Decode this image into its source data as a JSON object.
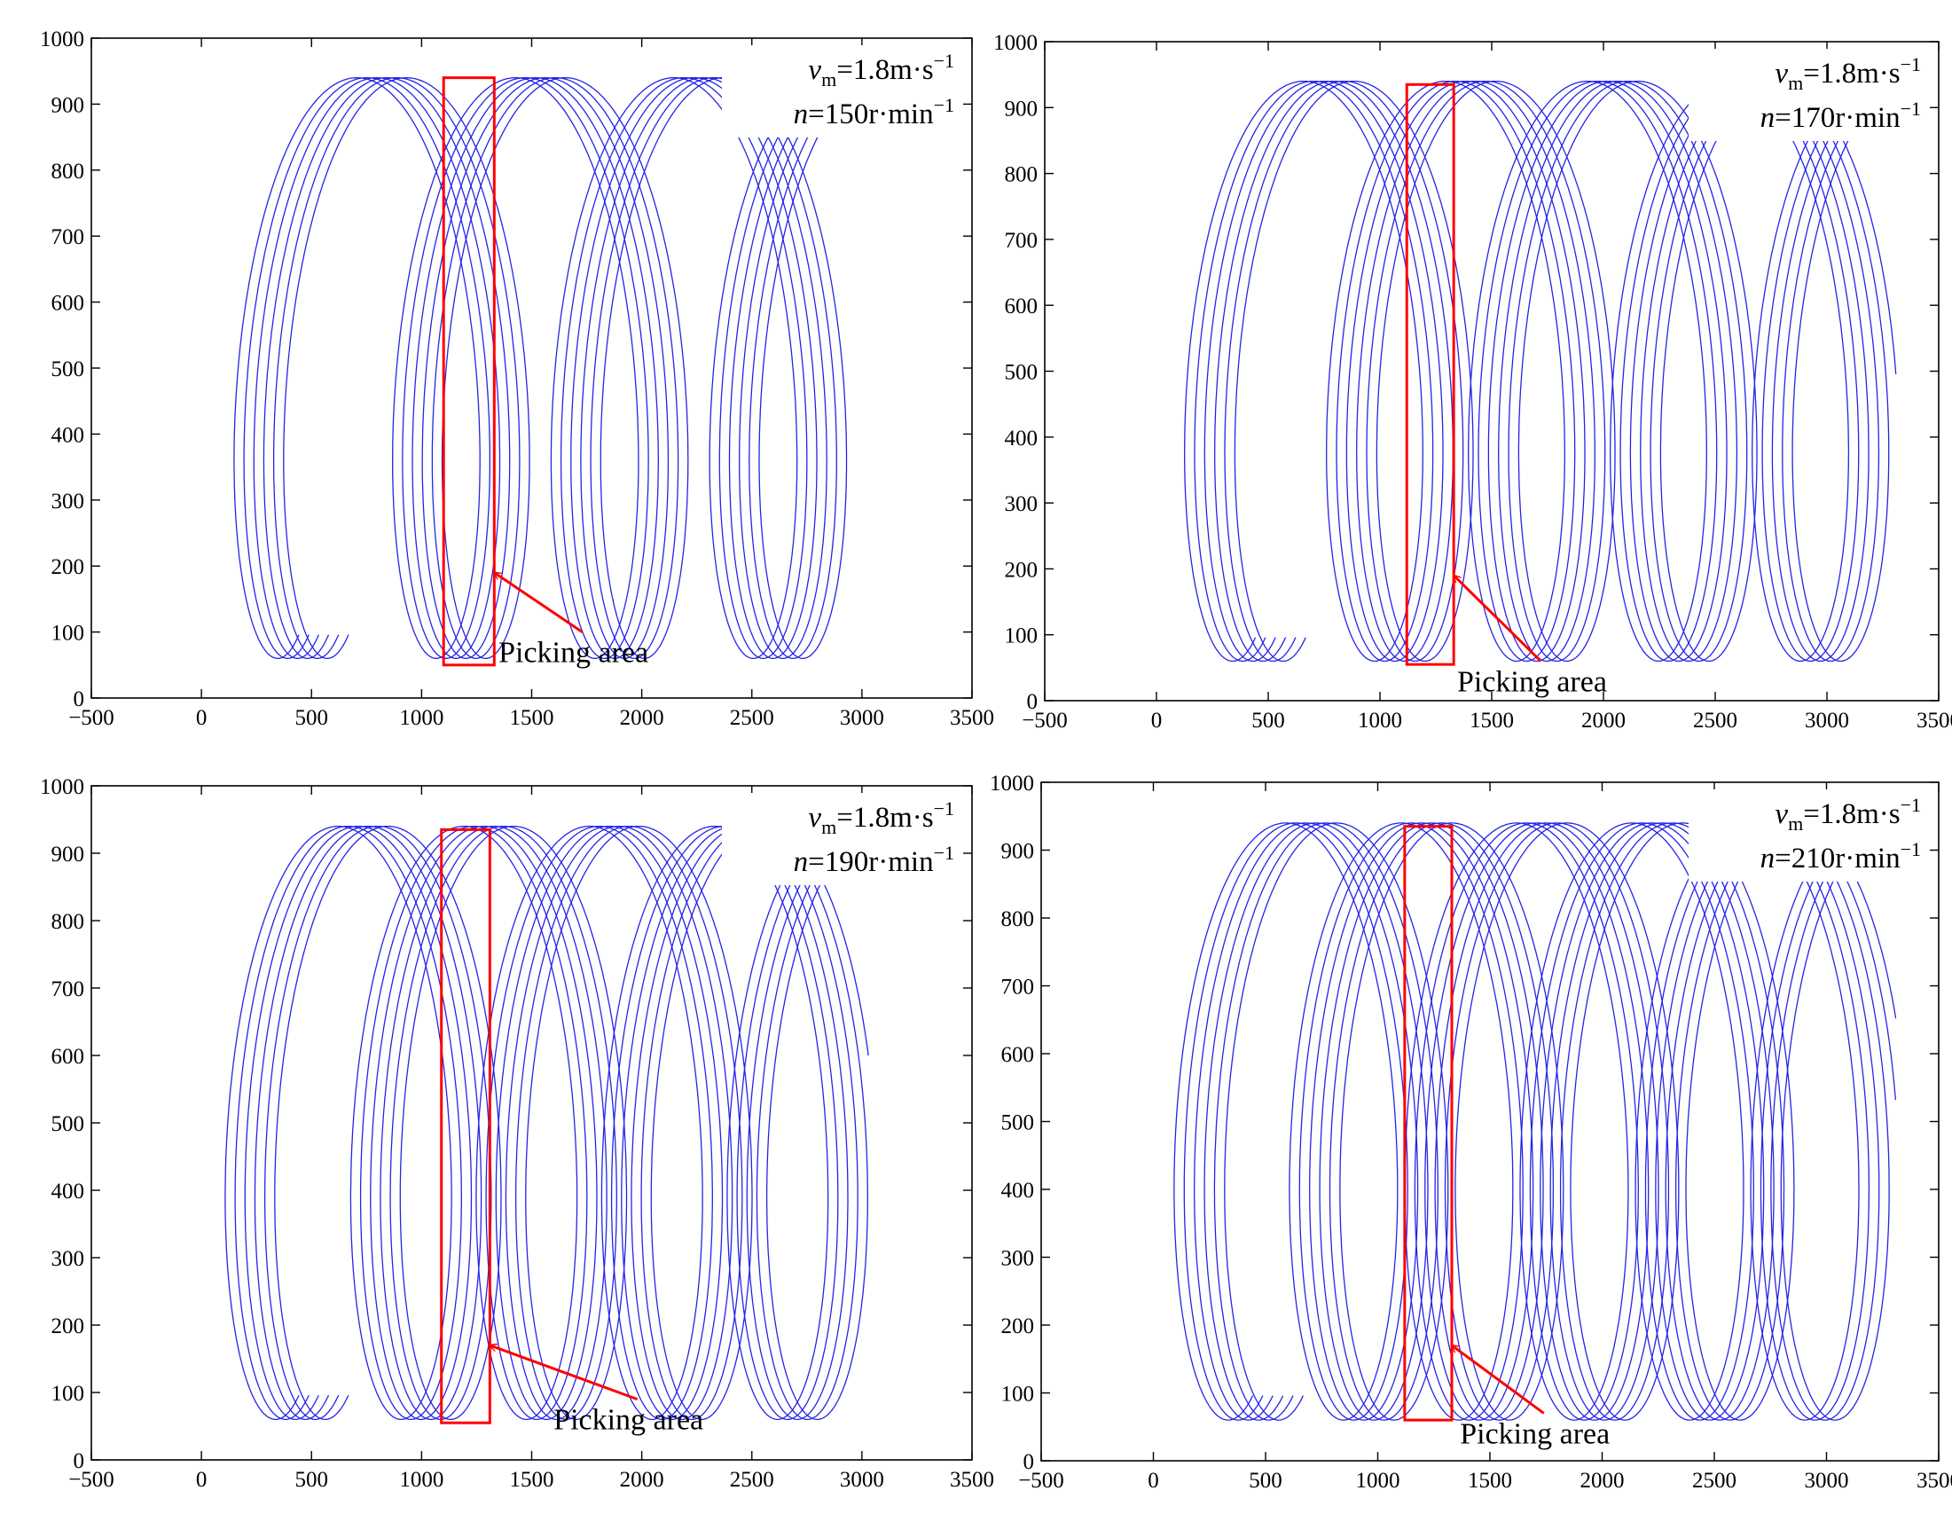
{
  "figure": {
    "panel_count": 4,
    "trajectory_color": "#2424e6",
    "box_color": "#ff0000",
    "background": "#ffffff"
  },
  "chart_data": [
    {
      "type": "line",
      "title": "",
      "xlabel": "",
      "ylabel": "",
      "xlim": [
        -500,
        3500
      ],
      "ylim": [
        0,
        1000
      ],
      "xticks": [
        -500,
        0,
        500,
        1000,
        1500,
        2000,
        2500,
        3000,
        3500
      ],
      "yticks": [
        0,
        100,
        200,
        300,
        400,
        500,
        600,
        700,
        800,
        900,
        1000
      ],
      "grid": false,
      "params": {
        "v_symbol": "v",
        "v_sub": "m",
        "v_value": "=1.8m·s",
        "v_exp": "−1",
        "n_symbol": "n",
        "n_value": "=150r·min",
        "n_exp": "−1"
      },
      "speed_r_min": 150,
      "series_description": "6 trochoidal tip trajectories, y range 60–940",
      "trajectory": {
        "num_tracks": 6,
        "track_offset": 45,
        "start_x": 440,
        "start_y": 500,
        "center_x": 300,
        "center_y": 500,
        "radius_x": 360,
        "radius_y": 440,
        "advance_per_rev": 720,
        "end_x": 3020
      },
      "box": {
        "x0": 1100,
        "x1": 1330,
        "y0": 50,
        "y1": 940
      },
      "annotation": {
        "text": "Picking area",
        "arrow_from": [
          1730,
          100
        ],
        "arrow_to": [
          1330,
          190
        ]
      }
    },
    {
      "type": "line",
      "title": "",
      "xlabel": "",
      "ylabel": "",
      "xlim": [
        -500,
        3500
      ],
      "ylim": [
        0,
        1000
      ],
      "xticks": [
        -500,
        0,
        500,
        1000,
        1500,
        2000,
        2500,
        3000,
        3500
      ],
      "yticks": [
        0,
        100,
        200,
        300,
        400,
        500,
        600,
        700,
        800,
        900,
        1000
      ],
      "grid": false,
      "params": {
        "v_symbol": "v",
        "v_sub": "m",
        "v_value": "=1.8m·s",
        "v_exp": "−1",
        "n_symbol": "n",
        "n_value": "=170r·min",
        "n_exp": "−1"
      },
      "speed_r_min": 170,
      "series_description": "6 trochoidal tip trajectories, y range 60–940",
      "trajectory": {
        "num_tracks": 6,
        "track_offset": 45,
        "start_x": 440,
        "start_y": 500,
        "center_x": 300,
        "center_y": 500,
        "radius_x": 360,
        "radius_y": 440,
        "advance_per_rev": 635,
        "end_x": 3300
      },
      "box": {
        "x0": 1120,
        "x1": 1330,
        "y0": 55,
        "y1": 935
      },
      "annotation": {
        "text": "Picking area",
        "arrow_from": [
          1720,
          60
        ],
        "arrow_to": [
          1330,
          190
        ]
      }
    },
    {
      "type": "line",
      "title": "",
      "xlabel": "",
      "ylabel": "",
      "xlim": [
        -500,
        3500
      ],
      "ylim": [
        0,
        1000
      ],
      "xticks": [
        -500,
        0,
        500,
        1000,
        1500,
        2000,
        2500,
        3000,
        3500
      ],
      "yticks": [
        0,
        100,
        200,
        300,
        400,
        500,
        600,
        700,
        800,
        900,
        1000
      ],
      "grid": false,
      "params": {
        "v_symbol": "v",
        "v_sub": "m",
        "v_value": "=1.8m·s",
        "v_exp": "−1",
        "n_symbol": "n",
        "n_value": "=190r·min",
        "n_exp": "−1"
      },
      "speed_r_min": 190,
      "series_description": "6 trochoidal tip trajectories, y range 60–940",
      "trajectory": {
        "num_tracks": 6,
        "track_offset": 45,
        "start_x": 440,
        "start_y": 500,
        "center_x": 300,
        "center_y": 500,
        "radius_x": 360,
        "radius_y": 440,
        "advance_per_rev": 570,
        "end_x": 3020
      },
      "box": {
        "x0": 1090,
        "x1": 1310,
        "y0": 55,
        "y1": 935
      },
      "annotation": {
        "text": "Picking area",
        "arrow_from": [
          1980,
          90
        ],
        "arrow_to": [
          1310,
          170
        ]
      }
    },
    {
      "type": "line",
      "title": "",
      "xlabel": "",
      "ylabel": "",
      "xlim": [
        -500,
        3500
      ],
      "ylim": [
        0,
        1000
      ],
      "xticks": [
        -500,
        0,
        500,
        1000,
        1500,
        2000,
        2500,
        3000,
        3500
      ],
      "yticks": [
        0,
        100,
        200,
        300,
        400,
        500,
        600,
        700,
        800,
        900,
        1000
      ],
      "grid": false,
      "params": {
        "v_symbol": "v",
        "v_sub": "m",
        "v_value": "=1.8m·s",
        "v_exp": "−1",
        "n_symbol": "n",
        "n_value": "=210r·min",
        "n_exp": "−1"
      },
      "speed_r_min": 210,
      "series_description": "6 trochoidal tip trajectories, y range 60–940",
      "trajectory": {
        "num_tracks": 6,
        "track_offset": 45,
        "start_x": 440,
        "start_y": 500,
        "center_x": 300,
        "center_y": 500,
        "radius_x": 360,
        "radius_y": 440,
        "advance_per_rev": 514,
        "end_x": 3300
      },
      "box": {
        "x0": 1120,
        "x1": 1330,
        "y0": 60,
        "y1": 935
      },
      "annotation": {
        "text": "Picking area",
        "arrow_from": [
          1740,
          70
        ],
        "arrow_to": [
          1330,
          170
        ]
      }
    }
  ]
}
